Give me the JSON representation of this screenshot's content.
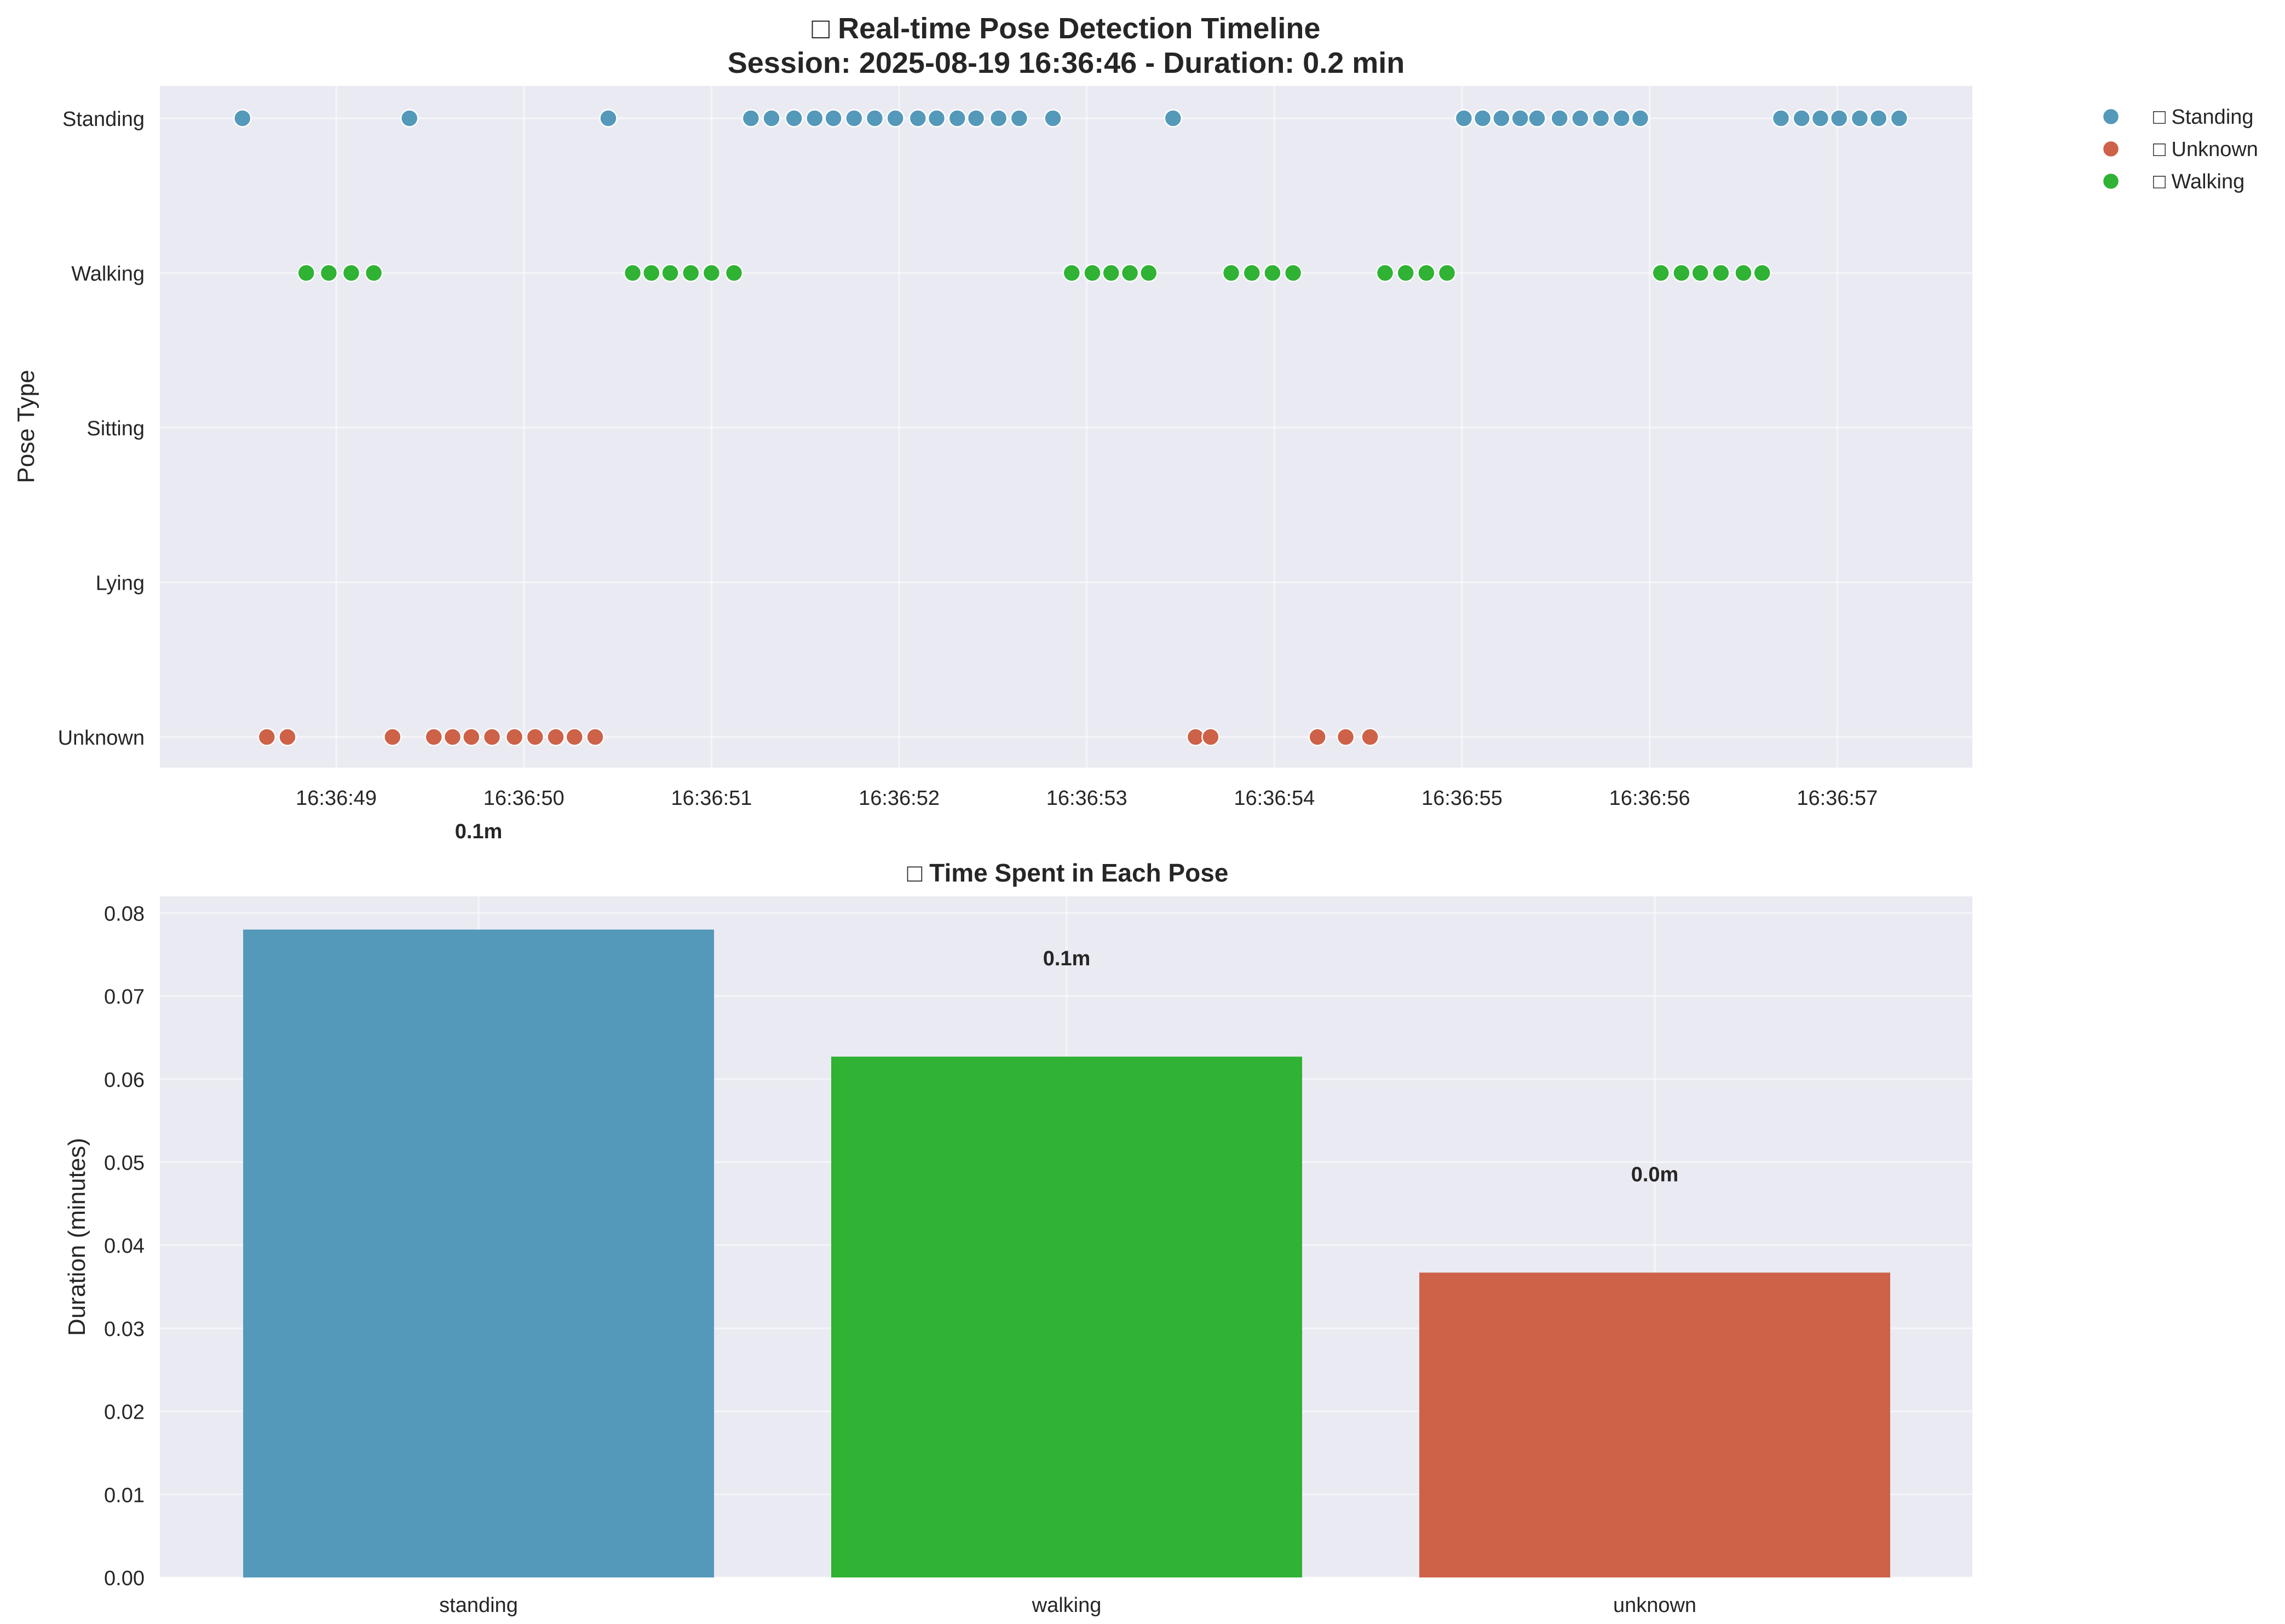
{
  "colors": {
    "standing": "#5499BA",
    "walking": "#30B234",
    "unknown": "#CD6249",
    "axes_bg": "#EAEAF2",
    "grid": "#FFFFFF"
  },
  "chart_data": [
    {
      "type": "scatter",
      "title_line1": "□ Real-time Pose Detection Timeline",
      "title_line2": "Session: 2025-08-19 16:36:46 - Duration: 0.2 min",
      "xlabel": "",
      "ylabel": "Pose Type",
      "y_categories": [
        "Standing",
        "Walking",
        "Sitting",
        "Lying",
        "Unknown"
      ],
      "x_ticks": [
        "16:36:49",
        "16:36:50",
        "16:36:51",
        "16:36:52",
        "16:36:53",
        "16:36:54",
        "16:36:55",
        "16:36:56",
        "16:36:57"
      ],
      "xlim": [
        "16:36:48.06",
        "16:36:57.72"
      ],
      "grid": true,
      "legend_position": "outside upper right",
      "series": [
        {
          "name": "□ Standing",
          "y": "Standing",
          "times": [
            "16:36:48.50",
            "16:36:49.39",
            "16:36:50.45",
            "16:36:51.21",
            "16:36:51.32",
            "16:36:51.44",
            "16:36:51.55",
            "16:36:51.65",
            "16:36:51.76",
            "16:36:51.87",
            "16:36:51.98",
            "16:36:52.10",
            "16:36:52.20",
            "16:36:52.31",
            "16:36:52.41",
            "16:36:52.53",
            "16:36:52.64",
            "16:36:52.82",
            "16:36:53.46",
            "16:36:55.01",
            "16:36:55.11",
            "16:36:55.21",
            "16:36:55.31",
            "16:36:55.40",
            "16:36:55.52",
            "16:36:55.63",
            "16:36:55.74",
            "16:36:55.85",
            "16:36:55.95",
            "16:36:56.70",
            "16:36:56.81",
            "16:36:56.91",
            "16:36:57.01",
            "16:36:57.12",
            "16:36:57.22",
            "16:36:57.33"
          ]
        },
        {
          "name": "□ Unknown",
          "y": "Unknown",
          "times": [
            "16:36:48.63",
            "16:36:48.74",
            "16:36:49.30",
            "16:36:49.52",
            "16:36:49.62",
            "16:36:49.72",
            "16:36:49.83",
            "16:36:49.95",
            "16:36:50.06",
            "16:36:50.17",
            "16:36:50.27",
            "16:36:50.38",
            "16:36:53.58",
            "16:36:53.66",
            "16:36:54.23",
            "16:36:54.38",
            "16:36:54.51"
          ]
        },
        {
          "name": "□ Walking",
          "y": "Walking",
          "times": [
            "16:36:48.84",
            "16:36:48.96",
            "16:36:49.08",
            "16:36:49.20",
            "16:36:50.58",
            "16:36:50.68",
            "16:36:50.78",
            "16:36:50.89",
            "16:36:51.00",
            "16:36:51.12",
            "16:36:52.92",
            "16:36:53.03",
            "16:36:53.13",
            "16:36:53.23",
            "16:36:53.33",
            "16:36:53.77",
            "16:36:53.88",
            "16:36:53.99",
            "16:36:54.10",
            "16:36:54.59",
            "16:36:54.70",
            "16:36:54.81",
            "16:36:54.92",
            "16:36:56.06",
            "16:36:56.17",
            "16:36:56.27",
            "16:36:56.38",
            "16:36:56.50",
            "16:36:56.60"
          ]
        }
      ]
    },
    {
      "type": "bar",
      "title": "□ Time Spent in Each Pose",
      "xlabel": "",
      "ylabel": "Duration (minutes)",
      "categories": [
        "standing",
        "walking",
        "unknown"
      ],
      "values": [
        0.078,
        0.0627,
        0.0367
      ],
      "bar_labels": [
        "0.1m",
        "0.1m",
        "0.0m"
      ],
      "ylim": [
        0,
        0.082
      ],
      "yticks": [
        "0.00",
        "0.01",
        "0.02",
        "0.03",
        "0.04",
        "0.05",
        "0.06",
        "0.07",
        "0.08"
      ],
      "grid": true
    }
  ]
}
